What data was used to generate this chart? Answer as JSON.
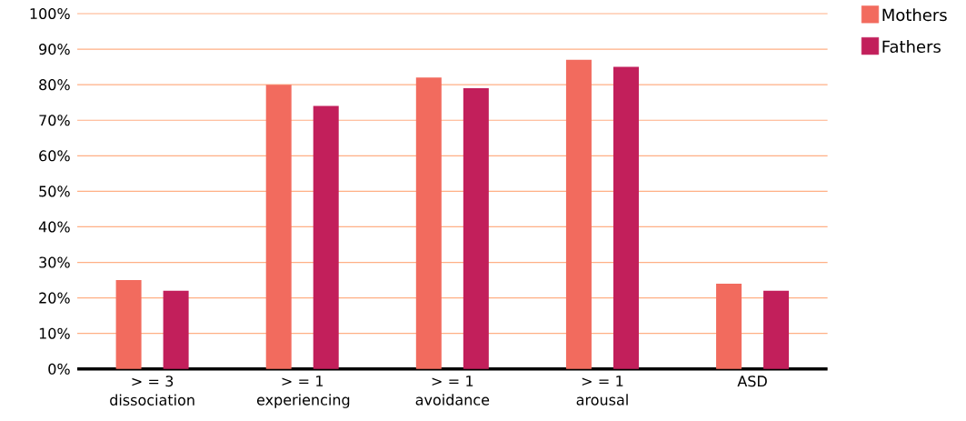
{
  "chart_data": {
    "type": "bar",
    "categories": [
      "> = 3 dissociation",
      "> = 1 experiencing",
      "> = 1 avoidance",
      "> = 1 arousal",
      "ASD"
    ],
    "series": [
      {
        "name": "Mothers",
        "color": "#f26b5e",
        "values": [
          25,
          80,
          82,
          87,
          24
        ]
      },
      {
        "name": "Fathers",
        "color": "#c21f5b",
        "values": [
          22,
          74,
          79,
          85,
          22
        ]
      }
    ],
    "ylim": [
      0,
      100
    ],
    "yticks": [
      {
        "value": 0,
        "label": "0%"
      },
      {
        "value": 10,
        "label": "10%"
      },
      {
        "value": 20,
        "label": "20%"
      },
      {
        "value": 30,
        "label": "30%"
      },
      {
        "value": 40,
        "label": "40%"
      },
      {
        "value": 50,
        "label": "50%"
      },
      {
        "value": 60,
        "label": "60%"
      },
      {
        "value": 70,
        "label": "70%"
      },
      {
        "value": 80,
        "label": "80%"
      },
      {
        "value": 90,
        "label": "90%"
      },
      {
        "value": 100,
        "label": "100%"
      }
    ],
    "grid": "y",
    "legend": "top right"
  }
}
